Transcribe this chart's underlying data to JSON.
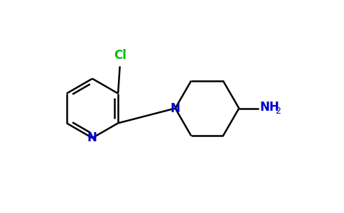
{
  "bg_color": "#ffffff",
  "bond_color": "#000000",
  "N_color": "#0000cc",
  "Cl_color": "#00bb00",
  "line_width": 1.8,
  "figsize": [
    4.84,
    3.0
  ],
  "dpi": 100,
  "xlim": [
    0,
    9.5
  ],
  "ylim": [
    0,
    5.8
  ]
}
